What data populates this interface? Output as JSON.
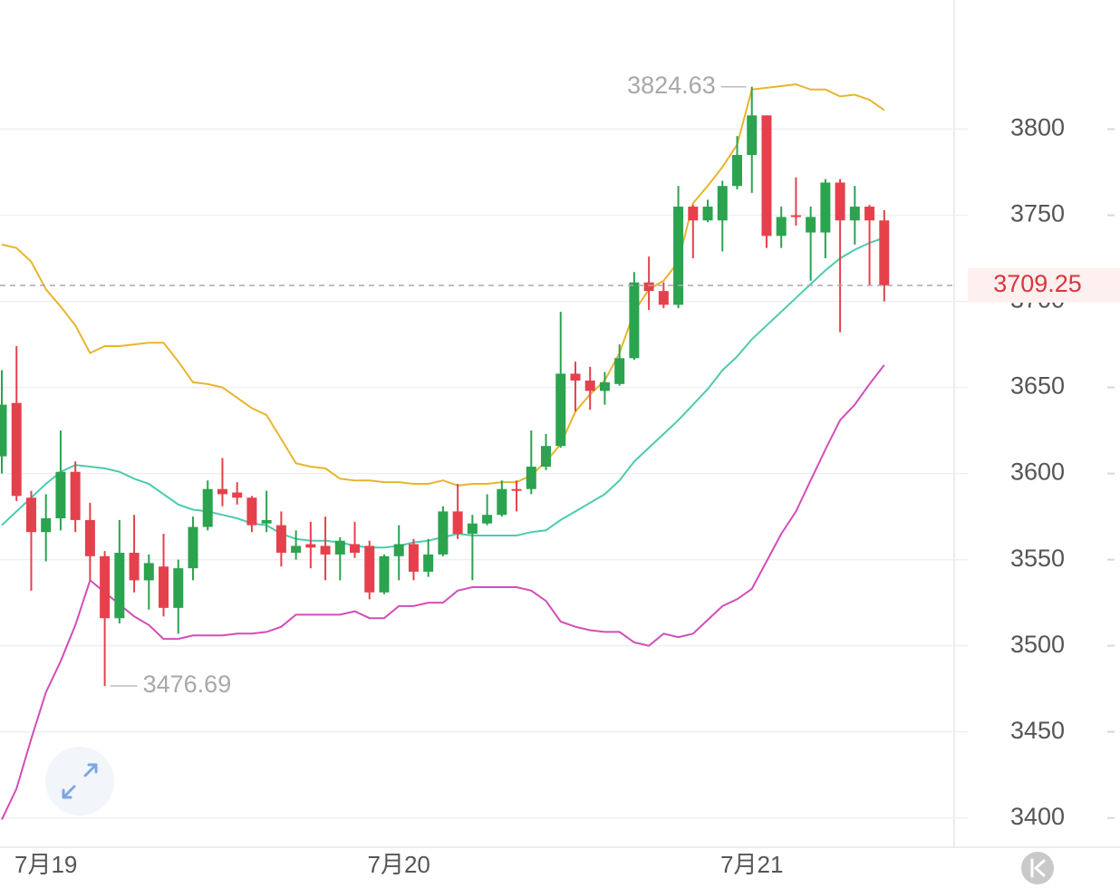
{
  "chart_data": {
    "type": "candlestick",
    "categories": [
      null,
      null,
      null,
      "7月19",
      null,
      null,
      null,
      null,
      null,
      null,
      null,
      null,
      null,
      null,
      null,
      null,
      null,
      null,
      null,
      null,
      null,
      null,
      null,
      null,
      null,
      null,
      null,
      "7月20",
      null,
      null,
      null,
      null,
      null,
      null,
      null,
      null,
      null,
      null,
      null,
      null,
      null,
      null,
      null,
      null,
      null,
      null,
      null,
      null,
      null,
      null,
      null,
      "7月21",
      null,
      null,
      null,
      null,
      null,
      null,
      null,
      null,
      null
    ],
    "ohlc": {
      "up_color": "#2ba34f",
      "down_color": "#e5414c",
      "open": [
        3610,
        3641,
        3586,
        3566,
        3574,
        3601,
        3573,
        3552,
        3516,
        3554,
        3538,
        3546,
        3522,
        3545,
        3569,
        3591,
        3589,
        3586,
        3571,
        3570,
        3554,
        3559,
        3558,
        3553,
        3559,
        3558,
        3531,
        3552,
        3559,
        3543,
        3553,
        3578,
        3565,
        3571,
        3576,
        3591,
        3591,
        3604,
        3616,
        3658,
        3654,
        3648,
        3652,
        3667,
        3711,
        3706,
        3698,
        3755,
        3747,
        3747,
        3767,
        3785,
        3808,
        3738,
        3750,
        3740,
        3740,
        3769,
        3747,
        3755,
        3747
      ],
      "high": [
        3660,
        3674,
        3590,
        3588,
        3625,
        3607,
        3583,
        3555,
        3573,
        3576,
        3553,
        3565,
        3550,
        3575,
        3596,
        3609,
        3595,
        3587,
        3590,
        3578,
        3567,
        3572,
        3575,
        3563,
        3572,
        3561,
        3553,
        3570,
        3562,
        3562,
        3581,
        3594,
        3576,
        3588,
        3596,
        3596,
        3625,
        3623,
        3694,
        3665,
        3662,
        3659,
        3675,
        3717,
        3726,
        3711,
        3767,
        3756,
        3759,
        3770,
        3796,
        3824.63,
        3808,
        3755,
        3772,
        3755,
        3771,
        3771,
        3767,
        3756,
        3753
      ],
      "low": [
        3600,
        3584,
        3532,
        3549,
        3567,
        3566,
        3538,
        3476.69,
        3513,
        3531,
        3521,
        3517,
        3507,
        3538,
        3567,
        3581,
        3582,
        3566,
        3566,
        3546,
        3550,
        3545,
        3538,
        3538,
        3551,
        3527,
        3530,
        3538,
        3538,
        3540,
        3552,
        3562,
        3538,
        3570,
        3575,
        3578,
        3588,
        3602,
        3615,
        3636,
        3637,
        3640,
        3651,
        3666,
        3695,
        3696,
        3696,
        3725,
        3746,
        3729,
        3765,
        3763,
        3731,
        3731,
        3744,
        3712,
        3725,
        3682,
        3733,
        3709,
        3700
      ],
      "close": [
        3640,
        3587,
        3566,
        3574,
        3601,
        3573,
        3552,
        3516,
        3554,
        3538,
        3548,
        3522,
        3545,
        3569,
        3591,
        3588,
        3586,
        3570,
        3573,
        3554,
        3558,
        3557,
        3553,
        3561,
        3554,
        3531,
        3552,
        3559,
        3543,
        3553,
        3578,
        3565,
        3571,
        3576,
        3591,
        3590,
        3604,
        3616,
        3658,
        3654,
        3648,
        3653,
        3667,
        3711,
        3706,
        3698,
        3755,
        3747,
        3755,
        3767,
        3785,
        3808,
        3738,
        3749,
        3749,
        3749,
        3769,
        3747,
        3755,
        3747,
        3709.25
      ]
    },
    "bands": [
      {
        "color": "#e8b52c",
        "values": [
          3733,
          3731,
          3723,
          3707,
          3697,
          3686,
          3670,
          3674,
          3674,
          3675,
          3676,
          3676,
          3665,
          3653,
          3652,
          3650,
          3644,
          3638,
          3634,
          3620,
          3606,
          3604,
          3603,
          3597,
          3596,
          3596,
          3595,
          3595,
          3594,
          3594,
          3596,
          3593,
          3594,
          3594,
          3595,
          3595,
          3599,
          3607,
          3617,
          3636,
          3646,
          3654,
          3670,
          3694,
          3707,
          3712,
          3723,
          3757,
          3767,
          3778,
          3791,
          3823,
          3824,
          3825,
          3826,
          3823,
          3823,
          3819,
          3820,
          3817,
          3811
        ]
      },
      {
        "color": "#4ccbb0",
        "values": [
          3570,
          3578,
          3586,
          3594,
          3601,
          3605,
          3604,
          3603,
          3601,
          3597,
          3594,
          3588,
          3582,
          3579,
          3578,
          3576,
          3574,
          3571,
          3570,
          3565,
          3562,
          3561,
          3561,
          3560,
          3558,
          3557,
          3557,
          3558,
          3560,
          3561,
          3563,
          3565,
          3564,
          3564,
          3564,
          3564,
          3566,
          3567,
          3573,
          3578,
          3583,
          3588,
          3596,
          3607,
          3615,
          3623,
          3631,
          3640,
          3649,
          3660,
          3668,
          3678,
          3686,
          3694,
          3702,
          3710,
          3718,
          3725,
          3730,
          3734,
          3737
        ]
      },
      {
        "color": "#d24dba",
        "values": [
          3399,
          3417,
          3446,
          3473,
          3491,
          3512,
          3538,
          3531,
          3524,
          3517,
          3512,
          3504,
          3504,
          3506,
          3506,
          3506,
          3507,
          3507,
          3508,
          3511,
          3518,
          3518,
          3518,
          3518,
          3520,
          3516,
          3516,
          3523,
          3523,
          3525,
          3525,
          3532,
          3534,
          3534,
          3534,
          3534,
          3532,
          3526,
          3514,
          3511,
          3509,
          3508,
          3508,
          3502,
          3500,
          3507,
          3505,
          3507,
          3515,
          3523,
          3527,
          3533,
          3549,
          3565,
          3578,
          3596,
          3614,
          3631,
          3640,
          3652,
          3663
        ]
      }
    ],
    "ylim": [
      3383,
      3875
    ],
    "yticks": [
      3400,
      3450,
      3500,
      3550,
      3600,
      3650,
      3700,
      3750,
      3800
    ],
    "grid": true
  }
}
